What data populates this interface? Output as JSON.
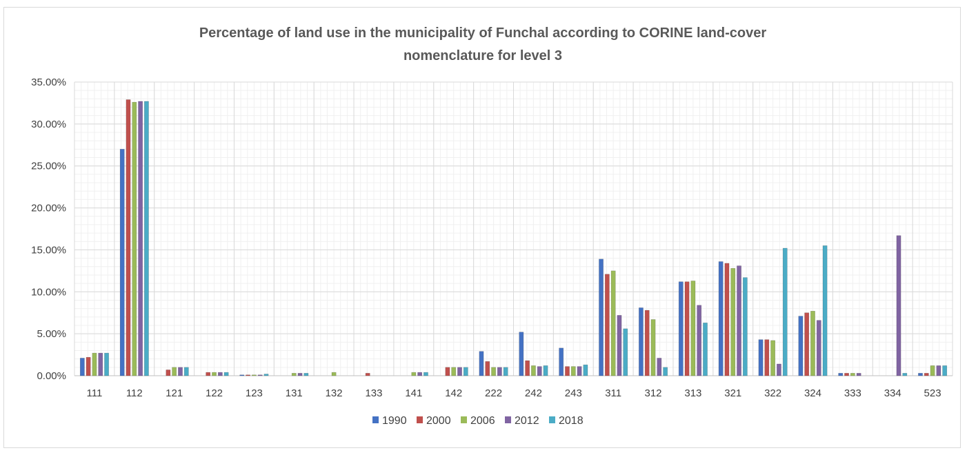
{
  "chart_data": {
    "type": "bar",
    "title_lines": [
      "Percentage of land use in the municipality of Funchal according to CORINE land-cover",
      "nomenclature for level 3"
    ],
    "xlabel": "",
    "ylabel": "",
    "ylim": [
      0,
      35
    ],
    "y_ticks": [
      "0.00%",
      "5.00%",
      "10.00%",
      "15.00%",
      "20.00%",
      "25.00%",
      "30.00%",
      "35.00%"
    ],
    "grid": "on",
    "legend_position": "bottom",
    "categories": [
      "111",
      "112",
      "121",
      "122",
      "123",
      "131",
      "132",
      "133",
      "141",
      "142",
      "222",
      "242",
      "243",
      "311",
      "312",
      "313",
      "321",
      "322",
      "324",
      "333",
      "334",
      "523"
    ],
    "series": [
      {
        "name": "1990",
        "color": "#4472c4",
        "values": [
          2.1,
          27.0,
          0.0,
          0.0,
          0.1,
          0.0,
          0.0,
          0.0,
          0.0,
          0.0,
          2.9,
          5.2,
          3.3,
          13.9,
          8.1,
          11.2,
          13.6,
          4.3,
          7.1,
          0.3,
          0.0,
          0.3
        ]
      },
      {
        "name": "2000",
        "color": "#c0504d",
        "values": [
          2.2,
          32.9,
          0.7,
          0.4,
          0.1,
          0.0,
          0.0,
          0.3,
          0.0,
          1.0,
          1.7,
          1.8,
          1.1,
          12.1,
          7.8,
          11.2,
          13.4,
          4.3,
          7.5,
          0.3,
          0.0,
          0.3
        ]
      },
      {
        "name": "2006",
        "color": "#9bbb59",
        "values": [
          2.7,
          32.6,
          1.0,
          0.4,
          0.1,
          0.3,
          0.4,
          0.0,
          0.4,
          1.0,
          1.0,
          1.2,
          1.1,
          12.5,
          6.7,
          11.3,
          12.8,
          4.2,
          7.7,
          0.3,
          0.0,
          1.2
        ]
      },
      {
        "name": "2012",
        "color": "#8064a2",
        "values": [
          2.7,
          32.7,
          1.0,
          0.4,
          0.1,
          0.3,
          0.0,
          0.0,
          0.4,
          1.0,
          1.0,
          1.1,
          1.1,
          7.2,
          2.1,
          8.4,
          13.1,
          1.4,
          6.6,
          0.3,
          16.7,
          1.2
        ]
      },
      {
        "name": "2018",
        "color": "#4bacc6",
        "values": [
          2.7,
          32.7,
          1.0,
          0.4,
          0.2,
          0.3,
          0.0,
          0.0,
          0.4,
          1.0,
          1.0,
          1.2,
          1.3,
          5.6,
          1.0,
          6.3,
          11.7,
          15.2,
          15.5,
          0.0,
          0.3,
          1.2
        ]
      }
    ]
  }
}
